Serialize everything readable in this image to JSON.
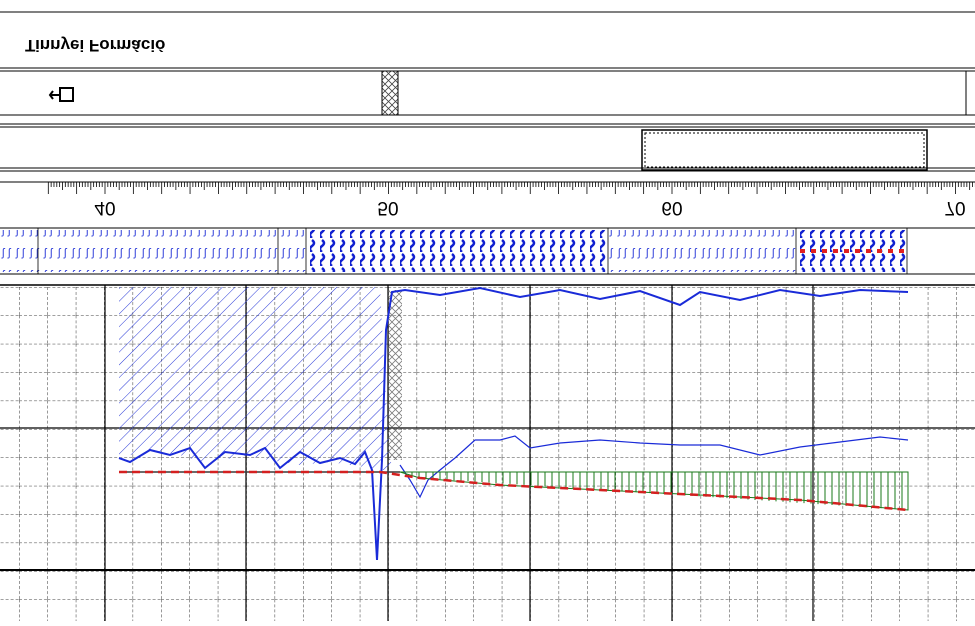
{
  "header": {
    "title": "Tinnyei Formáció"
  },
  "depth_scale": {
    "labels": [
      "40",
      "50",
      "60",
      "70"
    ]
  }
}
